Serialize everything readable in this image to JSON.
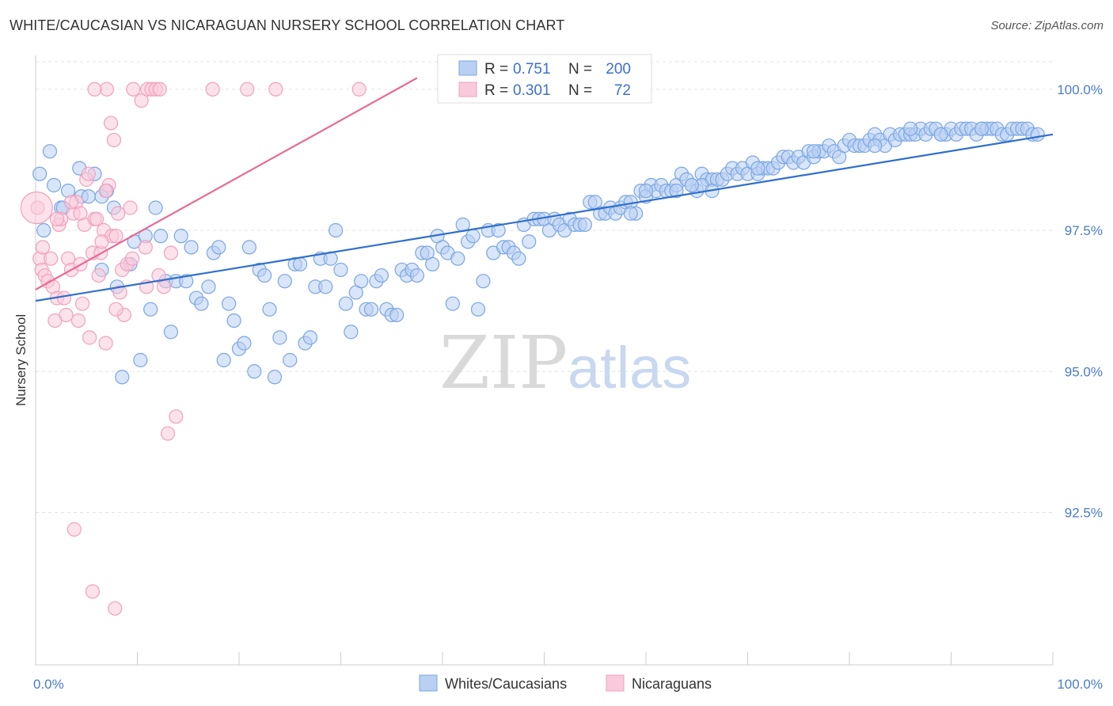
{
  "title": "WHITE/CAUCASIAN VS NICARAGUAN NURSERY SCHOOL CORRELATION CHART",
  "source": "Source: ZipAtlas.com",
  "watermark": {
    "zip": "ZIP",
    "atlas": "atlas"
  },
  "chart_data": {
    "type": "scatter",
    "ylabel": "Nursery School",
    "xlim": [
      0,
      100
    ],
    "ylim": [
      89.8,
      100.6
    ],
    "x_tick_labels": [
      "0.0%",
      "100.0%"
    ],
    "y_ticks": [
      92.5,
      95.0,
      97.5,
      100.0
    ],
    "y_tick_labels": [
      "92.5%",
      "95.0%",
      "97.5%",
      "100.0%"
    ],
    "grid": true,
    "legend_top": [
      {
        "r_label": "R =",
        "r_value": "0.751",
        "n_label": "N =",
        "n_value": "200"
      },
      {
        "r_label": "R =",
        "r_value": "0.301",
        "n_label": "N =",
        "n_value": "72"
      }
    ],
    "series": [
      {
        "name": "Whites/Caucasians",
        "color": "#7aa6e3",
        "fill": "#b9d0f2",
        "line_color": "#2f6fd0",
        "trend": [
          [
            0,
            96.25
          ],
          [
            100,
            99.2
          ]
        ],
        "points": [
          [
            0.4,
            98.5
          ],
          [
            0.8,
            97.5
          ],
          [
            1.4,
            98.9
          ],
          [
            1.8,
            98.3
          ],
          [
            2.5,
            97.9
          ],
          [
            2.7,
            97.9
          ],
          [
            3.2,
            98.2
          ],
          [
            4.3,
            98.6
          ],
          [
            4.5,
            98.1
          ],
          [
            5.2,
            98.1
          ],
          [
            5.8,
            98.5
          ],
          [
            6.5,
            98.1
          ],
          [
            7.0,
            98.2
          ],
          [
            7.7,
            97.9
          ],
          [
            8.0,
            96.5
          ],
          [
            6.5,
            96.8
          ],
          [
            8.5,
            94.9
          ],
          [
            9.3,
            96.9
          ],
          [
            9.7,
            97.3
          ],
          [
            10.3,
            95.2
          ],
          [
            10.8,
            97.4
          ],
          [
            11.3,
            96.1
          ],
          [
            11.8,
            97.9
          ],
          [
            12.3,
            97.4
          ],
          [
            12.8,
            96.6
          ],
          [
            13.3,
            95.7
          ],
          [
            13.8,
            96.6
          ],
          [
            14.3,
            97.4
          ],
          [
            14.8,
            96.6
          ],
          [
            15.3,
            97.2
          ],
          [
            15.8,
            96.3
          ],
          [
            16.3,
            96.2
          ],
          [
            17.0,
            96.5
          ],
          [
            17.5,
            97.1
          ],
          [
            18.0,
            97.2
          ],
          [
            18.5,
            95.2
          ],
          [
            19.0,
            96.2
          ],
          [
            19.5,
            95.9
          ],
          [
            20.0,
            95.4
          ],
          [
            20.5,
            95.5
          ],
          [
            21.0,
            97.2
          ],
          [
            21.5,
            95.0
          ],
          [
            22.0,
            96.8
          ],
          [
            22.5,
            96.7
          ],
          [
            23.0,
            96.1
          ],
          [
            23.5,
            94.9
          ],
          [
            24.0,
            95.6
          ],
          [
            24.5,
            96.6
          ],
          [
            25.0,
            95.2
          ],
          [
            25.5,
            96.9
          ],
          [
            26.0,
            96.9
          ],
          [
            26.5,
            95.5
          ],
          [
            27.0,
            95.6
          ],
          [
            27.5,
            96.5
          ],
          [
            28.0,
            97.0
          ],
          [
            28.5,
            96.5
          ],
          [
            29.0,
            97.0
          ],
          [
            29.5,
            97.5
          ],
          [
            30.0,
            96.8
          ],
          [
            30.5,
            96.2
          ],
          [
            31.0,
            95.7
          ],
          [
            31.5,
            96.4
          ],
          [
            32.0,
            96.6
          ],
          [
            32.5,
            96.1
          ],
          [
            33.0,
            96.1
          ],
          [
            33.5,
            96.6
          ],
          [
            34.0,
            96.7
          ],
          [
            34.5,
            96.1
          ],
          [
            35.0,
            96.0
          ],
          [
            35.5,
            96.0
          ],
          [
            36.0,
            96.8
          ],
          [
            36.5,
            96.7
          ],
          [
            37.0,
            96.8
          ],
          [
            37.5,
            96.7
          ],
          [
            38.0,
            97.1
          ],
          [
            38.5,
            97.1
          ],
          [
            39.0,
            96.9
          ],
          [
            39.5,
            97.4
          ],
          [
            40.0,
            97.2
          ],
          [
            40.5,
            97.1
          ],
          [
            41.0,
            96.2
          ],
          [
            41.5,
            97.0
          ],
          [
            42.0,
            97.6
          ],
          [
            42.5,
            97.3
          ],
          [
            43.0,
            97.4
          ],
          [
            43.5,
            96.1
          ],
          [
            44.0,
            96.6
          ],
          [
            44.5,
            97.5
          ],
          [
            45.0,
            97.1
          ],
          [
            45.5,
            97.5
          ],
          [
            46.0,
            97.2
          ],
          [
            46.5,
            97.2
          ],
          [
            47.0,
            97.1
          ],
          [
            47.5,
            97.0
          ],
          [
            48.0,
            97.6
          ],
          [
            48.5,
            97.3
          ],
          [
            49.0,
            97.7
          ],
          [
            49.5,
            97.7
          ],
          [
            50.0,
            97.7
          ],
          [
            50.5,
            97.5
          ],
          [
            51.0,
            97.7
          ],
          [
            51.5,
            97.6
          ],
          [
            52.0,
            97.5
          ],
          [
            52.5,
            97.7
          ],
          [
            53.0,
            97.6
          ],
          [
            53.5,
            97.6
          ],
          [
            54.0,
            97.6
          ],
          [
            54.5,
            98.0
          ],
          [
            55.0,
            98.0
          ],
          [
            55.5,
            97.8
          ],
          [
            56.0,
            97.8
          ],
          [
            56.5,
            97.9
          ],
          [
            57.0,
            97.8
          ],
          [
            57.5,
            97.9
          ],
          [
            58.0,
            98.0
          ],
          [
            58.5,
            98.0
          ],
          [
            59.0,
            97.8
          ],
          [
            59.5,
            98.2
          ],
          [
            60.0,
            98.1
          ],
          [
            60.5,
            98.3
          ],
          [
            61.0,
            98.2
          ],
          [
            61.5,
            98.3
          ],
          [
            62.0,
            98.2
          ],
          [
            62.5,
            98.2
          ],
          [
            63.0,
            98.3
          ],
          [
            63.5,
            98.5
          ],
          [
            64.0,
            98.4
          ],
          [
            64.5,
            98.3
          ],
          [
            65.0,
            98.2
          ],
          [
            65.5,
            98.5
          ],
          [
            66.0,
            98.4
          ],
          [
            66.5,
            98.4
          ],
          [
            67.0,
            98.4
          ],
          [
            67.5,
            98.4
          ],
          [
            68.0,
            98.5
          ],
          [
            68.5,
            98.6
          ],
          [
            69.0,
            98.5
          ],
          [
            69.5,
            98.6
          ],
          [
            70.0,
            98.5
          ],
          [
            70.5,
            98.7
          ],
          [
            71.0,
            98.5
          ],
          [
            71.5,
            98.6
          ],
          [
            72.0,
            98.6
          ],
          [
            72.5,
            98.6
          ],
          [
            73.0,
            98.7
          ],
          [
            73.5,
            98.8
          ],
          [
            74.0,
            98.8
          ],
          [
            74.5,
            98.7
          ],
          [
            75.0,
            98.8
          ],
          [
            75.5,
            98.7
          ],
          [
            76.0,
            98.9
          ],
          [
            76.5,
            98.8
          ],
          [
            77.0,
            98.9
          ],
          [
            77.5,
            98.9
          ],
          [
            78.0,
            99.0
          ],
          [
            78.5,
            98.9
          ],
          [
            79.0,
            98.8
          ],
          [
            79.5,
            99.0
          ],
          [
            80.0,
            99.1
          ],
          [
            80.5,
            99.0
          ],
          [
            81.0,
            99.0
          ],
          [
            81.5,
            99.0
          ],
          [
            82.0,
            99.1
          ],
          [
            82.5,
            99.2
          ],
          [
            83.0,
            99.1
          ],
          [
            83.5,
            99.0
          ],
          [
            84.0,
            99.2
          ],
          [
            84.5,
            99.1
          ],
          [
            85.0,
            99.2
          ],
          [
            85.5,
            99.2
          ],
          [
            86.0,
            99.2
          ],
          [
            86.5,
            99.2
          ],
          [
            87.0,
            99.3
          ],
          [
            87.5,
            99.2
          ],
          [
            88.0,
            99.3
          ],
          [
            88.5,
            99.3
          ],
          [
            89.0,
            99.2
          ],
          [
            89.5,
            99.2
          ],
          [
            90.0,
            99.3
          ],
          [
            90.5,
            99.2
          ],
          [
            91.0,
            99.3
          ],
          [
            91.5,
            99.3
          ],
          [
            92.0,
            99.3
          ],
          [
            92.5,
            99.2
          ],
          [
            93.0,
            99.3
          ],
          [
            93.5,
            99.3
          ],
          [
            94.0,
            99.3
          ],
          [
            94.5,
            99.3
          ],
          [
            95.0,
            99.2
          ],
          [
            95.5,
            99.2
          ],
          [
            96.0,
            99.3
          ],
          [
            96.5,
            99.3
          ],
          [
            97.0,
            99.3
          ],
          [
            97.5,
            99.3
          ],
          [
            98.0,
            99.2
          ],
          [
            98.5,
            99.2
          ],
          [
            65.5,
            98.3
          ],
          [
            66.5,
            98.2
          ],
          [
            64.5,
            98.3
          ],
          [
            63.0,
            98.2
          ],
          [
            71.0,
            98.6
          ],
          [
            76.5,
            98.9
          ],
          [
            82.5,
            99.0
          ],
          [
            86.0,
            99.3
          ],
          [
            89.0,
            99.2
          ],
          [
            93.0,
            99.3
          ],
          [
            58.5,
            97.8
          ],
          [
            60.0,
            98.2
          ]
        ]
      },
      {
        "name": "Nicaraguans",
        "color": "#f2a0bc",
        "fill": "#f9cadb",
        "line_color": "#e86a95",
        "trend": [
          [
            0,
            96.45
          ],
          [
            37.5,
            100.2
          ]
        ],
        "points": [
          [
            0.4,
            97.0
          ],
          [
            0.6,
            96.8
          ],
          [
            0.7,
            97.2
          ],
          [
            0.9,
            96.7
          ],
          [
            1.2,
            96.6
          ],
          [
            1.5,
            97.0
          ],
          [
            1.7,
            96.5
          ],
          [
            1.9,
            95.9
          ],
          [
            2.1,
            96.3
          ],
          [
            2.3,
            97.6
          ],
          [
            2.5,
            97.7
          ],
          [
            2.8,
            96.3
          ],
          [
            3.0,
            96.0
          ],
          [
            3.2,
            97.0
          ],
          [
            3.5,
            96.8
          ],
          [
            3.7,
            97.8
          ],
          [
            4.0,
            98.0
          ],
          [
            4.2,
            95.9
          ],
          [
            4.4,
            96.9
          ],
          [
            4.6,
            96.2
          ],
          [
            4.8,
            97.6
          ],
          [
            5.0,
            98.4
          ],
          [
            5.3,
            95.6
          ],
          [
            5.6,
            97.1
          ],
          [
            5.8,
            97.7
          ],
          [
            6.0,
            97.7
          ],
          [
            6.2,
            96.7
          ],
          [
            6.4,
            97.1
          ],
          [
            6.7,
            97.5
          ],
          [
            6.9,
            95.5
          ],
          [
            7.2,
            98.3
          ],
          [
            7.5,
            97.4
          ],
          [
            7.7,
            99.1
          ],
          [
            7.9,
            97.4
          ],
          [
            8.1,
            97.8
          ],
          [
            8.3,
            96.4
          ],
          [
            8.5,
            96.8
          ],
          [
            8.7,
            96.0
          ],
          [
            9.0,
            96.9
          ],
          [
            9.3,
            97.9
          ],
          [
            9.6,
            100.0
          ],
          [
            10.4,
            99.8
          ],
          [
            10.8,
            97.2
          ],
          [
            11.0,
            100.0
          ],
          [
            11.4,
            100.0
          ],
          [
            11.8,
            100.0
          ],
          [
            12.2,
            100.0
          ],
          [
            12.6,
            96.5
          ],
          [
            13.0,
            93.9
          ],
          [
            13.3,
            97.1
          ],
          [
            13.8,
            94.2
          ],
          [
            7.0,
            100.0
          ],
          [
            5.8,
            100.0
          ],
          [
            7.4,
            99.4
          ],
          [
            17.4,
            100.0
          ],
          [
            20.8,
            100.0
          ],
          [
            23.6,
            100.0
          ],
          [
            31.8,
            100.0
          ],
          [
            2.1,
            97.7
          ],
          [
            3.5,
            98.0
          ],
          [
            5.2,
            98.5
          ],
          [
            6.5,
            97.3
          ],
          [
            7.9,
            96.1
          ],
          [
            9.5,
            97.0
          ],
          [
            10.9,
            96.5
          ],
          [
            12.1,
            96.7
          ],
          [
            4.4,
            97.8
          ],
          [
            6.9,
            98.2
          ],
          [
            3.8,
            92.2
          ],
          [
            5.6,
            91.1
          ],
          [
            7.8,
            90.8
          ],
          [
            0.2,
            97.9
          ]
        ]
      }
    ]
  }
}
